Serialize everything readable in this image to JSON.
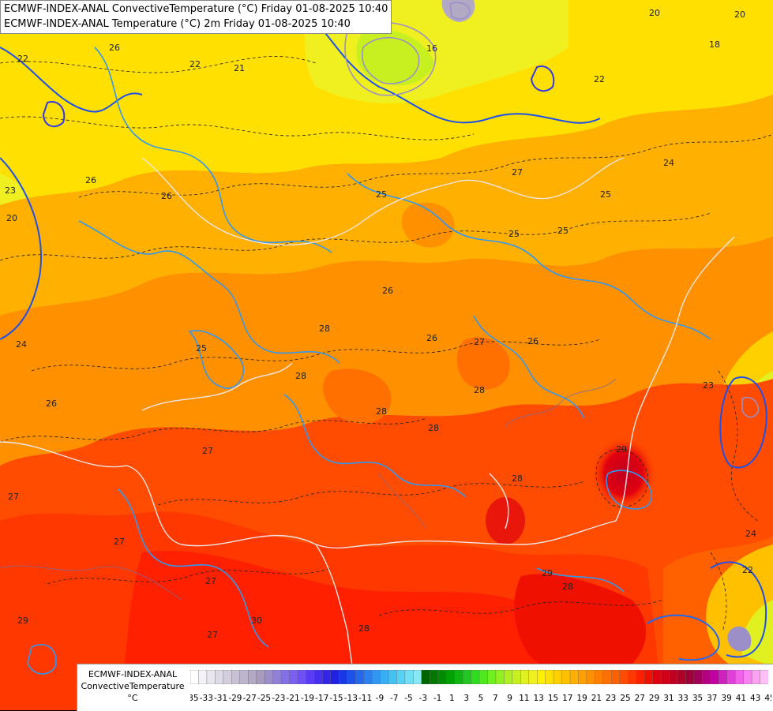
{
  "header": {
    "line1": "ECMWF-INDEX-ANAL ConvectiveTemperature (°C) Friday 01-08-2025 10:40",
    "line2": "ECMWF-INDEX-ANAL Temperature (°C) 2m Friday 01-08-2025 10:40"
  },
  "legend": {
    "model": "ECMWF-INDEX-ANAL",
    "parameter": "ConvectiveTemperature",
    "unit": "°C",
    "ticks": [
      "-35",
      "-33",
      "-31",
      "-29",
      "-27",
      "-25",
      "-23",
      "-21",
      "-19",
      "-17",
      "-15",
      "-13",
      "-11",
      "-9",
      "-7",
      "-5",
      "-3",
      "-1",
      "1",
      "3",
      "5",
      "7",
      "9",
      "11",
      "13",
      "15",
      "17",
      "19",
      "21",
      "23",
      "25",
      "27",
      "29",
      "31",
      "33",
      "35",
      "37",
      "39",
      "41",
      "43",
      "45"
    ],
    "colors": [
      "#ffffff",
      "#f4f2f6",
      "#e9e6ee",
      "#dedae6",
      "#d3cddd",
      "#c8c1d5",
      "#bdb5cd",
      "#b2a9c5",
      "#a79cbd",
      "#9c8fc8",
      "#9080d8",
      "#8470e6",
      "#7a5ff0",
      "#6e50f5",
      "#5a3cf5",
      "#4630f0",
      "#3325e8",
      "#2020e0",
      "#1838e6",
      "#1e50ea",
      "#2468ee",
      "#2a80f0",
      "#3098f2",
      "#38aef4",
      "#45c2f4",
      "#58d2f4",
      "#70dff4",
      "#88e8f4",
      "#006400",
      "#007800",
      "#008c00",
      "#00a000",
      "#10b410",
      "#20c820",
      "#30dc20",
      "#50e620",
      "#70f020",
      "#90f020",
      "#b0f020",
      "#c8f020",
      "#e0f020",
      "#f0f020",
      "#fff000",
      "#ffe000",
      "#ffd000",
      "#ffc000",
      "#ffb000",
      "#ffa000",
      "#ff9000",
      "#ff8000",
      "#ff7000",
      "#ff6000",
      "#ff4c00",
      "#ff3800",
      "#ff2000",
      "#f01000",
      "#e00010",
      "#d00018",
      "#c00020",
      "#b00028",
      "#a00038",
      "#a00058",
      "#b00080",
      "#c000a0",
      "#d020c0",
      "#e040d8",
      "#f060e8",
      "#f880f0",
      "#fca0f4",
      "#ffc0f8"
    ]
  },
  "map_labels": [
    {
      "text": "21"
    },
    {
      "text": "22"
    },
    {
      "text": "22"
    },
    {
      "text": "26"
    },
    {
      "text": "23"
    },
    {
      "text": "20"
    },
    {
      "text": "24"
    },
    {
      "text": "26"
    },
    {
      "text": "26"
    },
    {
      "text": "25"
    },
    {
      "text": "25"
    },
    {
      "text": "26"
    },
    {
      "text": "27"
    },
    {
      "text": "25"
    },
    {
      "text": "28"
    },
    {
      "text": "26"
    },
    {
      "text": "27"
    },
    {
      "text": "26"
    },
    {
      "text": "28"
    },
    {
      "text": "28"
    },
    {
      "text": "28"
    },
    {
      "text": "28"
    },
    {
      "text": "27"
    },
    {
      "text": "27"
    },
    {
      "text": "26"
    },
    {
      "text": "27"
    },
    {
      "text": "29"
    },
    {
      "text": "29"
    },
    {
      "text": "28"
    },
    {
      "text": "29"
    },
    {
      "text": "30"
    },
    {
      "text": "28"
    },
    {
      "text": "27"
    },
    {
      "text": "20"
    },
    {
      "text": "22"
    },
    {
      "text": "23"
    },
    {
      "text": "24"
    },
    {
      "text": "20"
    },
    {
      "text": "18"
    },
    {
      "text": "16"
    },
    {
      "text": "22"
    },
    {
      "text": "24"
    },
    {
      "text": "25"
    },
    {
      "text": "25"
    },
    {
      "text": "27"
    },
    {
      "text": "28"
    }
  ]
}
